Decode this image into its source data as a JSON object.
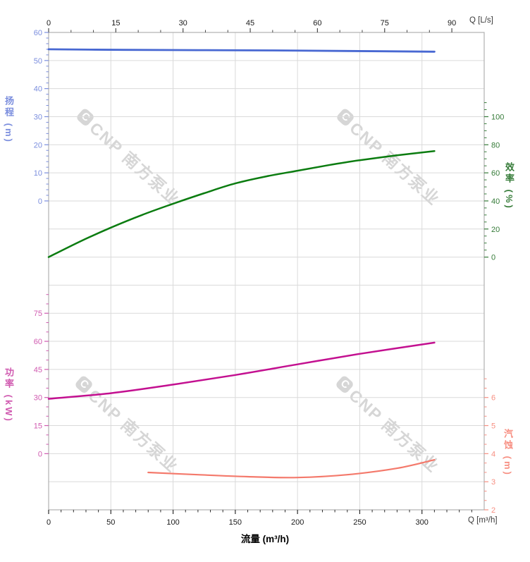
{
  "watermark": {
    "logo_letter": "C",
    "text": "CNP 南方泵业"
  },
  "chart_data": {
    "type": "line",
    "title": "",
    "grid": true,
    "legend": "none",
    "colors": {
      "background": "#ffffff",
      "grid": "#dadada",
      "frame": "#b0b0b0"
    },
    "axes": {
      "top": {
        "unit_label": "Q [L/s]",
        "ticks": [
          0,
          15,
          30,
          45,
          60,
          75,
          90
        ],
        "minor_step": 5,
        "tick_color": "#4a4a4a",
        "label_color": "#1a1a1a"
      },
      "bottom": {
        "unit_label": "Q [m³/h]",
        "title": "流量 (m³/h)",
        "ticks": [
          0,
          50,
          100,
          150,
          200,
          250,
          300
        ],
        "minor_step": 10,
        "max": 350,
        "tick_color": "#2b2b2b",
        "label_color": "#1a1a1a"
      },
      "head": {
        "title": "扬程 (m)",
        "side": "left",
        "ticks": [
          0,
          10,
          20,
          30,
          40,
          50,
          60
        ],
        "minor_step": 2,
        "color": "#7b8ede"
      },
      "efficiency": {
        "title": "效率 (%)",
        "side": "right",
        "ticks": [
          0,
          20,
          40,
          60,
          80,
          100
        ],
        "minor_step": 5,
        "color": "#357b38"
      },
      "power": {
        "title": "功率 (kW)",
        "side": "left",
        "ticks": [
          0,
          15,
          30,
          45,
          60,
          75
        ],
        "minor_step": 5,
        "color": "#d05ab0"
      },
      "npsh": {
        "title": "汽蚀 (m)",
        "side": "right",
        "ticks": [
          2,
          3,
          4,
          5,
          6
        ],
        "minor_step": 0.3333,
        "color": "#f78f82"
      }
    },
    "series": [
      {
        "name": "head",
        "label": "扬程",
        "unit": "m",
        "scale": "head",
        "color": "#4868d2",
        "width": 2.8,
        "points": [
          [
            0,
            54.0
          ],
          [
            60,
            53.8
          ],
          [
            120,
            53.7
          ],
          [
            180,
            53.6
          ],
          [
            240,
            53.4
          ],
          [
            310,
            53.15
          ]
        ]
      },
      {
        "name": "efficiency",
        "label": "效率",
        "unit": "%",
        "scale": "efficiency",
        "color": "#0b7c10",
        "width": 2.5,
        "points": [
          [
            0,
            0
          ],
          [
            25,
            11
          ],
          [
            50,
            21
          ],
          [
            75,
            30
          ],
          [
            100,
            38
          ],
          [
            125,
            45.5
          ],
          [
            150,
            52.5
          ],
          [
            175,
            57.5
          ],
          [
            200,
            61.5
          ],
          [
            225,
            65.5
          ],
          [
            250,
            69
          ],
          [
            280,
            72.5
          ],
          [
            310,
            75.5
          ]
        ]
      },
      {
        "name": "power",
        "label": "功率",
        "unit": "kW",
        "scale": "power",
        "color": "#c31090",
        "width": 2.5,
        "points": [
          [
            0,
            29.3
          ],
          [
            50,
            32.3
          ],
          [
            100,
            36.9
          ],
          [
            150,
            42.0
          ],
          [
            200,
            47.7
          ],
          [
            250,
            53.3
          ],
          [
            310,
            59.3
          ]
        ]
      },
      {
        "name": "npsh",
        "label": "汽蚀",
        "unit": "m",
        "scale": "npsh",
        "color": "#f4796b",
        "width": 2.2,
        "points": [
          [
            80,
            3.33
          ],
          [
            120,
            3.25
          ],
          [
            160,
            3.18
          ],
          [
            200,
            3.15
          ],
          [
            240,
            3.25
          ],
          [
            280,
            3.48
          ],
          [
            310,
            3.78
          ]
        ]
      }
    ]
  }
}
